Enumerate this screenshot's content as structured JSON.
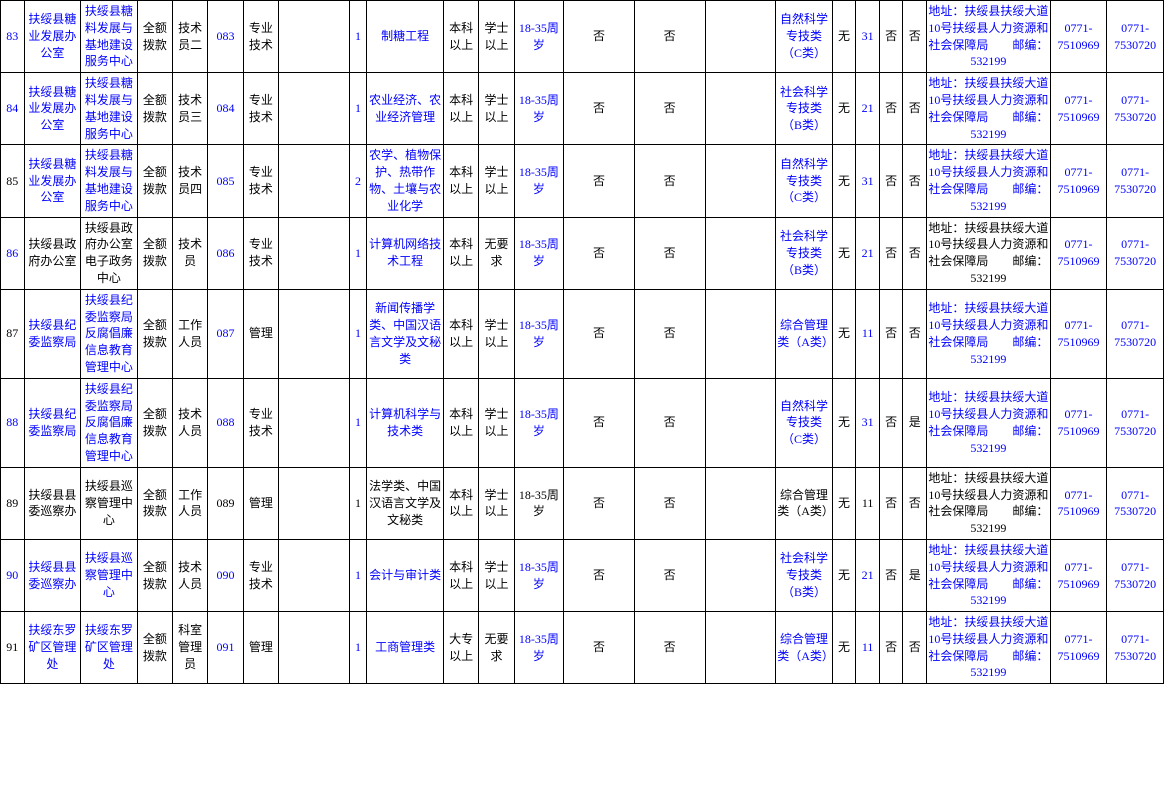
{
  "columns": {
    "widths": [
      20,
      48,
      48,
      30,
      30,
      30,
      30,
      60,
      15,
      65,
      30,
      30,
      42,
      60,
      60,
      60,
      48,
      20,
      20,
      20,
      20,
      105,
      48,
      48
    ],
    "blueCols": [
      0,
      1,
      2,
      5,
      8,
      9,
      12,
      16,
      18,
      21,
      22,
      23
    ]
  },
  "rows": [
    {
      "id": "83",
      "c0": "83",
      "c1": "扶绥县糖业发展办公室",
      "c2": "扶绥县糖料发展与基地建设服务中心",
      "c3": "全额拨款",
      "c4": "技术员二",
      "c5": "083",
      "c6": "专业技术",
      "c7": "",
      "c8": "1",
      "c9": "制糖工程",
      "c10": "本科以上",
      "c11": "学士以上",
      "c12": "18-35周岁",
      "c13": "否",
      "c14": "否",
      "c15": "",
      "c16": "自然科学专技类（C类）",
      "c17": "无",
      "c18": "31",
      "c19": "否",
      "c20": "否",
      "c21": "地址：扶绥县扶绥大道10号扶绥县人力资源和社会保障局　　邮编：532199",
      "c22": "0771-7510969",
      "c23": "0771-7530720"
    },
    {
      "id": "84",
      "c0": "84",
      "c1": "扶绥县糖业发展办公室",
      "c2": "扶绥县糖料发展与基地建设服务中心",
      "c3": "全额拨款",
      "c4": "技术员三",
      "c5": "084",
      "c6": "专业技术",
      "c7": "",
      "c8": "1",
      "c9": "农业经济、农业经济管理",
      "c10": "本科以上",
      "c11": "学士以上",
      "c12": "18-35周岁",
      "c13": "否",
      "c14": "否",
      "c15": "",
      "c16": "社会科学专技类（B类）",
      "c17": "无",
      "c18": "21",
      "c19": "否",
      "c20": "否",
      "c21": "地址：扶绥县扶绥大道10号扶绥县人力资源和社会保障局　　邮编：532199",
      "c22": "0771-7510969",
      "c23": "0771-7530720"
    },
    {
      "id": "85",
      "c0": "85",
      "c1": "扶绥县糖业发展办公室",
      "c2": "扶绥县糖料发展与基地建设服务中心",
      "c3": "全额拨款",
      "c4": "技术员四",
      "c5": "085",
      "c6": "专业技术",
      "c7": "",
      "c8": "2",
      "c9": "农学、植物保护、热带作物、土壤与农业化学",
      "c10": "本科以上",
      "c11": "学士以上",
      "c12": "18-35周岁",
      "c13": "否",
      "c14": "否",
      "c15": "",
      "c16": "自然科学专技类（C类）",
      "c17": "无",
      "c18": "31",
      "c19": "否",
      "c20": "否",
      "c21": "地址：扶绥县扶绥大道10号扶绥县人力资源和社会保障局　　邮编：532199",
      "c22": "0771-7510969",
      "c23": "0771-7530720",
      "blackCols": [
        0
      ]
    },
    {
      "id": "86",
      "c0": "86",
      "c1": "扶绥县政府办公室",
      "c2": "扶绥县政府办公室电子政务中心",
      "c3": "全额拨款",
      "c4": "技术员",
      "c5": "086",
      "c6": "专业技术",
      "c7": "",
      "c8": "1",
      "c9": "计算机网络技术工程",
      "c10": "本科以上",
      "c11": "无要求",
      "c12": "18-35周岁",
      "c13": "否",
      "c14": "否",
      "c15": "",
      "c16": "社会科学专技类（B类）",
      "c17": "无",
      "c18": "21",
      "c19": "否",
      "c20": "否",
      "c21": "地址：扶绥县扶绥大道10号扶绥县人力资源和社会保障局　　邮编：532199",
      "c22": "0771-7510969",
      "c23": "0771-7530720",
      "blackCols": [
        1,
        2,
        21
      ]
    },
    {
      "id": "87",
      "c0": "87",
      "c1": "扶绥县纪委监察局",
      "c2": "扶绥县纪委监察局反腐倡廉信息教育管理中心",
      "c3": "全额拨款",
      "c4": "工作人员",
      "c5": "087",
      "c6": "管理",
      "c7": "",
      "c8": "1",
      "c9": "新闻传播学类、中国汉语言文学及文秘类",
      "c10": "本科以上",
      "c11": "学士以上",
      "c12": "18-35周岁",
      "c13": "否",
      "c14": "否",
      "c15": "",
      "c16": "综合管理类（A类）",
      "c17": "无",
      "c18": "11",
      "c19": "否",
      "c20": "否",
      "c21": "地址：扶绥县扶绥大道10号扶绥县人力资源和社会保障局　　邮编：532199",
      "c22": "0771-7510969",
      "c23": "0771-7530720",
      "blackCols": [
        0
      ]
    },
    {
      "id": "88",
      "c0": "88",
      "c1": "扶绥县纪委监察局",
      "c2": "扶绥县纪委监察局反腐倡廉信息教育管理中心",
      "c3": "全额拨款",
      "c4": "技术人员",
      "c5": "088",
      "c6": "专业技术",
      "c7": "",
      "c8": "1",
      "c9": "计算机科学与技术类",
      "c10": "本科以上",
      "c11": "学士以上",
      "c12": "18-35周岁",
      "c13": "否",
      "c14": "否",
      "c15": "",
      "c16": "自然科学专技类（C类）",
      "c17": "无",
      "c18": "31",
      "c19": "否",
      "c20": "是",
      "c21": "地址：扶绥县扶绥大道10号扶绥县人力资源和社会保障局　　邮编：532199",
      "c22": "0771-7510969",
      "c23": "0771-7530720"
    },
    {
      "id": "89",
      "c0": "89",
      "c1": "扶绥县县委巡察办",
      "c2": "扶绥县巡察管理中心",
      "c3": "全额拨款",
      "c4": "工作人员",
      "c5": "089",
      "c6": "管理",
      "c7": "",
      "c8": "1",
      "c9": "法学类、中国汉语言文学及文秘类",
      "c10": "本科以上",
      "c11": "学士以上",
      "c12": "18-35周岁",
      "c13": "否",
      "c14": "否",
      "c15": "",
      "c16": "综合管理类（A类）",
      "c17": "无",
      "c18": "11",
      "c19": "否",
      "c20": "否",
      "c21": "地址：扶绥县扶绥大道10号扶绥县人力资源和社会保障局　　邮编：532199",
      "c22": "0771-7510969",
      "c23": "0771-7530720",
      "blackCols": [
        0,
        1,
        2,
        5,
        8,
        9,
        12,
        16,
        18,
        21
      ]
    },
    {
      "id": "90",
      "c0": "90",
      "c1": "扶绥县县委巡察办",
      "c2": "扶绥县巡察管理中心",
      "c3": "全额拨款",
      "c4": "技术人员",
      "c5": "090",
      "c6": "专业技术",
      "c7": "",
      "c8": "1",
      "c9": "会计与审计类",
      "c10": "本科以上",
      "c11": "学士以上",
      "c12": "18-35周岁",
      "c13": "否",
      "c14": "否",
      "c15": "",
      "c16": "社会科学专技类（B类）",
      "c17": "无",
      "c18": "21",
      "c19": "否",
      "c20": "是",
      "c21": "地址：扶绥县扶绥大道10号扶绥县人力资源和社会保障局　　邮编：532199",
      "c22": "0771-7510969",
      "c23": "0771-7530720"
    },
    {
      "id": "91",
      "c0": "91",
      "c1": "扶绥东罗矿区管理处",
      "c2": "扶绥东罗矿区管理处",
      "c3": "全额拨款",
      "c4": "科室管理员",
      "c5": "091",
      "c6": "管理",
      "c7": "",
      "c8": "1",
      "c9": "工商管理类",
      "c10": "大专以上",
      "c11": "无要求",
      "c12": "18-35周岁",
      "c13": "否",
      "c14": "否",
      "c15": "",
      "c16": "综合管理类（A类）",
      "c17": "无",
      "c18": "11",
      "c19": "否",
      "c20": "否",
      "c21": "地址：扶绥县扶绥大道10号扶绥县人力资源和社会保障局　　邮编：532199",
      "c22": "0771-7510969",
      "c23": "0771-7530720",
      "blackCols": [
        0
      ]
    }
  ]
}
